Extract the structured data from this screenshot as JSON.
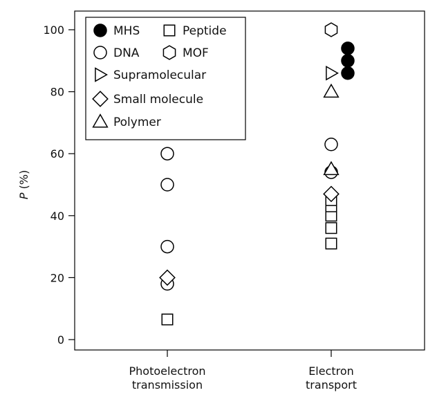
{
  "chart_data": {
    "type": "scatter",
    "ylabel_var": "P",
    "ylabel_unit": " (%)",
    "ylim": [
      0,
      100
    ],
    "yticks": [
      "0",
      "20",
      "40",
      "60",
      "80",
      "100"
    ],
    "categories": [
      "Photoelectron\ntransmission",
      "Electron\ntransport"
    ],
    "legend_placement": "top-left",
    "marker_color": "#000000",
    "series": [
      {
        "name": "MHS",
        "marker": "filled-circle",
        "points": [
          {
            "cat": 1,
            "y": 94
          },
          {
            "cat": 1,
            "y": 90
          },
          {
            "cat": 1,
            "y": 86
          }
        ]
      },
      {
        "name": "Peptide",
        "marker": "square",
        "points": [
          {
            "cat": 0,
            "y": 6.5
          },
          {
            "cat": 1,
            "y": 31
          },
          {
            "cat": 1,
            "y": 36
          },
          {
            "cat": 1,
            "y": 40
          },
          {
            "cat": 1,
            "y": 43
          },
          {
            "cat": 1,
            "y": 45
          }
        ]
      },
      {
        "name": "DNA",
        "marker": "circle",
        "points": [
          {
            "cat": 0,
            "y": 60
          },
          {
            "cat": 0,
            "y": 50
          },
          {
            "cat": 0,
            "y": 30
          },
          {
            "cat": 0,
            "y": 18
          },
          {
            "cat": 1,
            "y": 63
          },
          {
            "cat": 1,
            "y": 54
          }
        ]
      },
      {
        "name": "MOF",
        "marker": "hexagon",
        "points": [
          {
            "cat": 1,
            "y": 100
          }
        ]
      },
      {
        "name": "Supramolecular",
        "marker": "triangle-right",
        "points": [
          {
            "cat": 1,
            "y": 86
          }
        ]
      },
      {
        "name": "Small molecule",
        "marker": "diamond",
        "points": [
          {
            "cat": 0,
            "y": 20
          },
          {
            "cat": 1,
            "y": 47
          }
        ]
      },
      {
        "name": "Polymer",
        "marker": "triangle-up",
        "points": [
          {
            "cat": 1,
            "y": 80
          },
          {
            "cat": 1,
            "y": 55
          }
        ]
      }
    ]
  }
}
